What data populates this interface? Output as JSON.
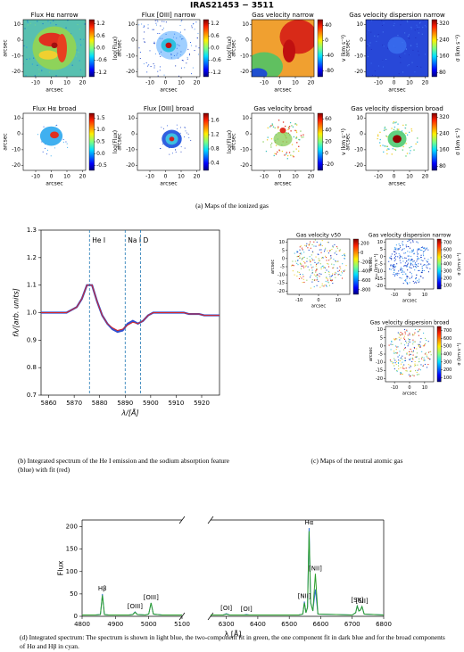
{
  "title": "IRAS21453 − 3511",
  "captions": [
    "(a) Maps of the ionized gas",
    "(b) Integrated spectrum of the He I emission and the sodium absorption feature (blue) with fit (red)",
    "(c) Maps of the neutral atomic gas",
    "(d) Integrated spectrum: The spectrum is shown in light blue, the two-component fit in green, the one component fit in dark blue and for the broad components of Hα and Hβ in cyan."
  ],
  "chart_data": [
    {
      "type": "map",
      "title": "Flux Hα narrow",
      "xlabel": "arcsec",
      "ylabel": "arcsec",
      "xlim": [
        -18,
        22
      ],
      "ylim": [
        -23,
        13
      ],
      "xticks": [
        -10,
        0,
        10,
        20
      ],
      "yticks": [
        -20,
        -10,
        0,
        10
      ],
      "clim": [
        -1.4,
        1.4
      ],
      "cticks": [
        -1.2,
        -0.6,
        {
          "value": 0,
          "label": "0.0"
        },
        0.6,
        1.2
      ],
      "clabel": "log(Flux)"
    },
    {
      "type": "map",
      "title": "Flux [OIII] narrow",
      "xlabel": "arcsec",
      "ylabel": "arcsec",
      "xlim": [
        -18,
        22
      ],
      "ylim": [
        -23,
        13
      ],
      "xticks": [
        -10,
        0,
        10,
        20
      ],
      "yticks": [
        -20,
        -10,
        0,
        10
      ],
      "clim": [
        -1.4,
        1.4
      ],
      "cticks": [
        -1.2,
        -0.6,
        {
          "value": 0,
          "label": "0.0"
        },
        0.6,
        1.2
      ],
      "clabel": "log(Flux)"
    },
    {
      "type": "map",
      "title": "Gas velocity narrow",
      "xlabel": "arcsec",
      "ylabel": "arcsec",
      "xlim": [
        -18,
        22
      ],
      "ylim": [
        -23,
        13
      ],
      "xticks": [
        -10,
        0,
        10,
        20
      ],
      "yticks": [
        -20,
        -10,
        0,
        10
      ],
      "clim": [
        -95,
        55
      ],
      "cticks": [
        -80,
        -40,
        0,
        40
      ],
      "clabel": "v (km s⁻¹)"
    },
    {
      "type": "map",
      "title": "Gas velocity dispersion narrow",
      "xlabel": "arcsec",
      "ylabel": "arcsec",
      "xlim": [
        -18,
        22
      ],
      "ylim": [
        -23,
        13
      ],
      "xticks": [
        -10,
        0,
        10,
        20
      ],
      "yticks": [
        -20,
        -10,
        0,
        10
      ],
      "clim": [
        60,
        340
      ],
      "cticks": [
        80,
        160,
        240,
        320
      ],
      "clabel": "σ (km s⁻¹)"
    },
    {
      "type": "map",
      "title": "Flux Hα broad",
      "xlabel": "arcsec",
      "ylabel": "arcsec",
      "xlim": [
        -18,
        22
      ],
      "ylim": [
        -23,
        13
      ],
      "xticks": [
        -10,
        0,
        10,
        20
      ],
      "yticks": [
        -20,
        -10,
        0,
        10
      ],
      "clim": [
        -0.7,
        1.7
      ],
      "cticks": [
        -0.5,
        {
          "value": 0,
          "label": "0.0"
        },
        0.5,
        {
          "value": 1,
          "label": "1.0"
        },
        1.5
      ],
      "clabel": "log(Flux)"
    },
    {
      "type": "map",
      "title": "Flux [OIII] broad",
      "xlabel": "arcsec",
      "ylabel": "arcsec",
      "xlim": [
        -18,
        22
      ],
      "ylim": [
        -23,
        13
      ],
      "xticks": [
        -10,
        0,
        10,
        20
      ],
      "yticks": [
        -20,
        -10,
        0,
        10
      ],
      "clim": [
        0.2,
        1.8
      ],
      "cticks": [
        0.4,
        0.8,
        1.2,
        1.6
      ],
      "clabel": "log(Flux)"
    },
    {
      "type": "map",
      "title": "Gas velocity broad",
      "xlabel": "arcsec",
      "ylabel": "arcsec",
      "xlim": [
        -18,
        22
      ],
      "ylim": [
        -23,
        13
      ],
      "xticks": [
        -10,
        0,
        10,
        20
      ],
      "yticks": [
        -20,
        -10,
        0,
        10
      ],
      "clim": [
        -30,
        70
      ],
      "cticks": [
        -20,
        0,
        20,
        40,
        60
      ],
      "clabel": "v (km s⁻¹)"
    },
    {
      "type": "map",
      "title": "Gas velocity dispersion broad",
      "xlabel": "arcsec",
      "ylabel": "arcsec",
      "xlim": [
        -18,
        22
      ],
      "ylim": [
        -23,
        13
      ],
      "xticks": [
        -10,
        0,
        10,
        20
      ],
      "yticks": [
        -20,
        -10,
        0,
        10
      ],
      "clim": [
        60,
        340
      ],
      "cticks": [
        80,
        160,
        240,
        320
      ],
      "clabel": "σ (km s⁻¹)"
    },
    {
      "type": "line",
      "xlabel": "λ/[Å]",
      "ylabel": "fλ/[arb. units]",
      "xlim": [
        5857,
        5927
      ],
      "ylim": [
        0.7,
        1.3
      ],
      "xticks": [
        5860,
        5870,
        5880,
        5890,
        5900,
        5910,
        5920
      ],
      "yticks": [
        0.7,
        0.8,
        0.9,
        {
          "value": 1,
          "label": "1.0"
        },
        1.1,
        1.2,
        1.3
      ],
      "annotations": [
        {
          "x": 5876,
          "label": "He I"
        },
        {
          "x": 5890,
          "label": "Na I D"
        },
        {
          "x": 5896
        }
      ],
      "x": [
        5857,
        5859,
        5861,
        5863,
        5865,
        5867,
        5869,
        5871,
        5873,
        5875,
        5877,
        5879,
        5881,
        5883,
        5885,
        5887,
        5889,
        5891,
        5893,
        5895,
        5897,
        5899,
        5901,
        5903,
        5905,
        5907,
        5909,
        5911,
        5913,
        5915,
        5917,
        5919,
        5921,
        5923,
        5925,
        5927
      ],
      "series": [
        {
          "color": "#3050d0",
          "values": [
            1.0,
            1.0,
            1.0,
            1.0,
            1.0,
            1.0,
            1.01,
            1.02,
            1.05,
            1.1,
            1.1,
            1.04,
            0.99,
            0.96,
            0.94,
            0.93,
            0.935,
            0.96,
            0.97,
            0.96,
            0.97,
            0.99,
            1.0,
            1.0,
            1.0,
            1.0,
            1.0,
            1.0,
            1.0,
            0.995,
            0.995,
            0.995,
            0.99,
            0.99,
            0.99,
            0.99
          ]
        },
        {
          "color": "#d62728",
          "values": [
            1.0,
            1.0,
            1.0,
            1.0,
            1.0,
            1.0,
            1.01,
            1.02,
            1.05,
            1.1,
            1.1,
            1.04,
            0.99,
            0.96,
            0.945,
            0.935,
            0.94,
            0.955,
            0.965,
            0.96,
            0.97,
            0.99,
            1.0,
            1.0,
            1.0,
            1.0,
            1.0,
            1.0,
            1.0,
            0.995,
            0.995,
            0.995,
            0.99,
            0.99,
            0.99,
            0.99
          ]
        }
      ]
    },
    {
      "type": "map",
      "title": "Gas velocity v50",
      "xlabel": "arcsec",
      "ylabel": "arcsec",
      "xlim": [
        -16,
        16
      ],
      "ylim": [
        -22,
        12
      ],
      "xticks": [
        -10,
        0,
        10
      ],
      "yticks": [
        -20,
        -15,
        -10,
        -5,
        0,
        5,
        10
      ],
      "clim": [
        -900,
        300
      ],
      "cticks": [
        -800,
        -600,
        -400,
        -200,
        0,
        200
      ],
      "clabel": "v₅₀ (km s⁻¹)"
    },
    {
      "type": "map",
      "title": "Gas velocity dispersion narrow",
      "xlabel": "arcsec",
      "ylabel": "arcsec",
      "xlim": [
        -16,
        16
      ],
      "ylim": [
        -22,
        12
      ],
      "xticks": [
        -10,
        0,
        10
      ],
      "yticks": [
        -20,
        -15,
        -10,
        -5,
        0,
        5,
        10
      ],
      "clim": [
        50,
        750
      ],
      "cticks": [
        100,
        200,
        300,
        400,
        500,
        600,
        700
      ],
      "clabel": "σ (km s⁻¹)"
    },
    {
      "type": "map",
      "title": "Gas velocity dispersion broad",
      "xlabel": "arcsec",
      "ylabel": "arcsec",
      "xlim": [
        -16,
        16
      ],
      "ylim": [
        -22,
        12
      ],
      "xticks": [
        -10,
        0,
        10
      ],
      "yticks": [
        -20,
        -15,
        -10,
        -5,
        0,
        5,
        10
      ],
      "clim": [
        50,
        750
      ],
      "cticks": [
        100,
        200,
        300,
        400,
        500,
        600,
        700
      ],
      "clabel": "σ (km s⁻¹)"
    },
    {
      "type": "broken_line",
      "xlabel": "λ [Å]",
      "ylabel": "Flux",
      "ylim": [
        0,
        215
      ],
      "yticks": [
        0,
        50,
        100,
        150,
        200
      ],
      "segments": [
        {
          "xlim": [
            4800,
            5100
          ],
          "xticks": [
            4800,
            4900,
            5000,
            5100
          ],
          "x": [
            4800,
            4840,
            4855,
            4861,
            4867,
            4880,
            4940,
            4952,
            4959,
            4966,
            4990,
            5000,
            5007,
            5014,
            5040,
            5100
          ],
          "series": [
            {
              "color": "#2f6fd0",
              "values": [
                3,
                3,
                4,
                50,
                4,
                3,
                3,
                4,
                10,
                4,
                3,
                5,
                30,
                5,
                3,
                3
              ]
            },
            {
              "color": "#2ca02c",
              "values": [
                3,
                3,
                4,
                47,
                4,
                3,
                3,
                4,
                9,
                4,
                3,
                5,
                30,
                5,
                3,
                3
              ]
            }
          ],
          "annotations": [
            {
              "x": 4861,
              "label": "Hβ"
            },
            {
              "x": 4959,
              "label": "[OIII]"
            },
            {
              "x": 5007,
              "label": "[OIII]"
            }
          ]
        },
        {
          "xlim": [
            6250,
            6800
          ],
          "xticks": [
            6300,
            6400,
            6500,
            6600,
            6700,
            6800
          ],
          "x": [
            6250,
            6290,
            6300,
            6310,
            6355,
            6364,
            6373,
            6530,
            6543,
            6548,
            6553,
            6558,
            6563,
            6568,
            6575,
            6583,
            6591,
            6700,
            6711,
            6716,
            6721,
            6726,
            6731,
            6738,
            6800
          ],
          "series": [
            {
              "color": "#2f6fd0",
              "values": [
                3,
                3,
                6,
                3,
                3,
                4,
                3,
                3,
                5,
                33,
                8,
                20,
                197,
                30,
                12,
                60,
                5,
                3,
                8,
                24,
                12,
                14,
                22,
                5,
                3
              ]
            },
            {
              "color": "#2ca02c",
              "values": [
                3,
                3,
                5,
                3,
                3,
                3,
                3,
                3,
                5,
                30,
                8,
                20,
                190,
                30,
                12,
                95,
                5,
                3,
                8,
                23,
                12,
                14,
                22,
                5,
                3
              ]
            }
          ],
          "annotations": [
            {
              "x": 6300,
              "label": "[OI]"
            },
            {
              "x": 6364,
              "label": "[OI]"
            },
            {
              "x": 6548,
              "label": "[NII]"
            },
            {
              "x": 6563,
              "label": "Hα"
            },
            {
              "x": 6583,
              "label": "[NII]"
            },
            {
              "x": 6716,
              "label": "[SII]"
            },
            {
              "x": 6731,
              "label": "[SII]"
            }
          ]
        }
      ]
    }
  ]
}
